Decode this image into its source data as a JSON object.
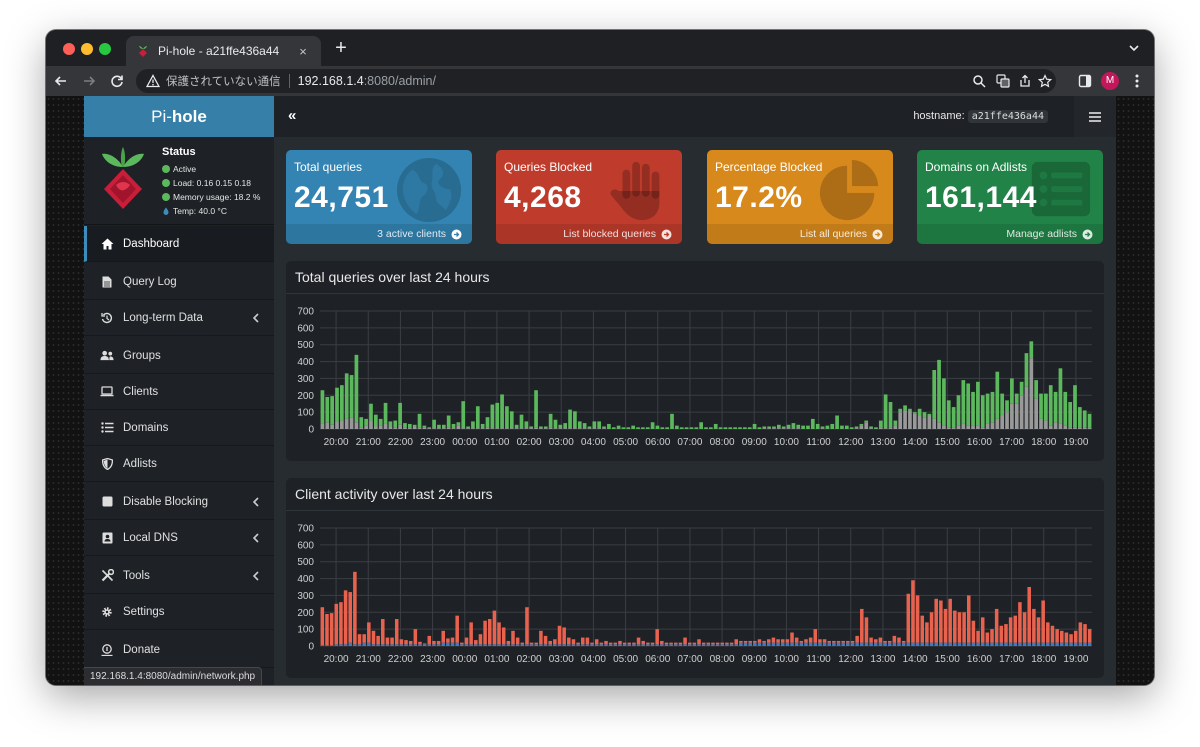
{
  "browser": {
    "tab_title": "Pi-hole - a21ffe436a44",
    "tab_close": "×",
    "new_tab": "+",
    "security_label": "保護されていない通信",
    "url_host": "192.168.1.4",
    "url_path": ":8080/admin/",
    "profile_initial": "M",
    "status_url": "192.168.1.4:8080/admin/network.php"
  },
  "sidebar": {
    "logo_prefix": "Pi-",
    "logo_bold": "hole",
    "status": {
      "title": "Status",
      "active": "Active",
      "load": "Load:  0.16  0.15  0.18",
      "memory": "Memory usage:  18.2 %",
      "temp": "Temp: 40.0 °C"
    },
    "items": [
      {
        "label": "Dashboard",
        "icon": "home-icon"
      },
      {
        "label": "Query Log",
        "icon": "file-icon"
      },
      {
        "label": "Long-term Data",
        "icon": "history-icon"
      },
      {
        "label": "Groups",
        "icon": "users-icon"
      },
      {
        "label": "Clients",
        "icon": "laptop-icon"
      },
      {
        "label": "Domains",
        "icon": "list-icon"
      },
      {
        "label": "Adlists",
        "icon": "shield-icon"
      },
      {
        "label": "Disable Blocking",
        "icon": "stop-icon"
      },
      {
        "label": "Local DNS",
        "icon": "address-book-icon"
      },
      {
        "label": "Tools",
        "icon": "tools-icon"
      },
      {
        "label": "Settings",
        "icon": "gear-icon"
      },
      {
        "label": "Donate",
        "icon": "donate-icon"
      }
    ]
  },
  "topbar": {
    "collapse": "«",
    "hostname_label": "hostname:",
    "hostname_value": "a21ffe436a44"
  },
  "stats": {
    "total": {
      "label": "Total queries",
      "value": "24,751",
      "footer": "3 active clients",
      "color": "#3384b2"
    },
    "blocked": {
      "label": "Queries Blocked",
      "value": "4,268",
      "footer": "List blocked queries",
      "color": "#bf3c2c"
    },
    "percent": {
      "label": "Percentage Blocked",
      "value": "17.2%",
      "footer": "List all queries",
      "color": "#d8891c"
    },
    "adlists": {
      "label": "Domains on Adlists",
      "value": "161,144",
      "footer": "Manage adlists",
      "color": "#218347"
    }
  },
  "chart_data": [
    {
      "type": "bar",
      "title": "Total queries over last 24 hours",
      "stacked": true,
      "ylim": [
        0,
        700
      ],
      "yticks": [
        0,
        100,
        200,
        300,
        400,
        500,
        600,
        700
      ],
      "xtick_labels": [
        "20:00",
        "21:00",
        "22:00",
        "23:00",
        "00:00",
        "01:00",
        "02:00",
        "03:00",
        "04:00",
        "05:00",
        "06:00",
        "07:00",
        "08:00",
        "09:00",
        "10:00",
        "11:00",
        "12:00",
        "13:00",
        "14:00",
        "15:00",
        "16:00",
        "17:00",
        "18:00",
        "19:00"
      ],
      "grid": true,
      "series": [
        {
          "color": "#999999",
          "values": [
            30,
            40,
            25,
            45,
            50,
            60,
            70,
            40,
            10,
            20,
            50,
            15,
            20,
            35,
            15,
            10,
            25,
            10,
            10,
            15,
            10,
            10,
            5,
            5,
            5,
            5,
            10,
            5,
            20,
            5,
            5,
            5,
            5,
            5,
            10,
            5,
            5,
            5,
            5,
            5,
            5,
            5,
            5,
            5,
            10,
            5,
            5,
            10,
            5,
            5,
            5,
            5,
            5,
            5,
            5,
            5,
            5,
            5,
            5,
            0,
            0,
            0,
            0,
            0,
            0,
            0,
            0,
            0,
            0,
            0,
            0,
            0,
            0,
            0,
            0,
            0,
            0,
            0,
            0,
            0,
            0,
            0,
            0,
            0,
            0,
            0,
            0,
            0,
            0,
            0,
            0,
            5,
            5,
            5,
            5,
            5,
            5,
            5,
            5,
            0,
            0,
            0,
            0,
            5,
            0,
            0,
            0,
            0,
            0,
            0,
            5,
            20,
            40,
            5,
            0,
            10,
            5,
            10,
            20,
            100,
            110,
            110,
            90,
            80,
            70,
            80,
            60,
            40,
            20,
            10,
            10,
            20,
            30,
            20,
            20,
            20,
            10,
            30,
            40,
            60,
            80,
            100,
            150,
            150,
            200,
            250,
            420,
            180,
            60,
            50,
            20,
            40,
            30,
            20,
            10,
            10,
            10,
            10,
            10
          ]
        },
        {
          "color": "#5cb85c",
          "values": [
            200,
            150,
            170,
            200,
            210,
            270,
            250,
            400,
            60,
            40,
            100,
            70,
            40,
            120,
            30,
            40,
            130,
            25,
            20,
            10,
            80,
            10,
            5,
            50,
            20,
            20,
            70,
            25,
            20,
            160,
            10,
            40,
            130,
            25,
            60,
            140,
            150,
            200,
            130,
            100,
            20,
            80,
            40,
            10,
            220,
            10,
            10,
            80,
            50,
            20,
            30,
            110,
            100,
            40,
            30,
            10,
            40,
            40,
            10,
            30,
            10,
            20,
            10,
            10,
            20,
            10,
            10,
            10,
            40,
            20,
            10,
            10,
            90,
            20,
            10,
            10,
            10,
            10,
            40,
            10,
            10,
            30,
            10,
            10,
            10,
            10,
            10,
            10,
            10,
            30,
            10,
            10,
            10,
            10,
            20,
            10,
            20,
            30,
            20,
            20,
            20,
            60,
            30,
            10,
            20,
            30,
            80,
            20,
            20,
            10,
            10,
            10,
            10,
            10,
            10,
            40,
            200,
            150,
            30,
            20,
            30,
            10,
            10,
            40,
            30,
            10,
            290,
            370,
            280,
            160,
            120,
            180,
            260,
            250,
            200,
            260,
            190,
            180,
            180,
            280,
            130,
            70,
            150,
            60,
            80,
            200,
            100,
            110,
            150,
            160,
            240,
            180,
            330,
            200,
            150,
            250,
            120,
            100,
            80,
            70,
            60,
            50,
            70,
            120,
            110,
            80,
            70,
            50,
            50,
            100,
            60
          ]
        }
      ]
    },
    {
      "type": "bar",
      "title": "Client activity over last 24 hours",
      "stacked": true,
      "ylim": [
        0,
        700
      ],
      "yticks": [
        0,
        100,
        200,
        300,
        400,
        500,
        600,
        700
      ],
      "xtick_labels": [
        "20:00",
        "21:00",
        "22:00",
        "23:00",
        "00:00",
        "01:00",
        "02:00",
        "03:00",
        "04:00",
        "05:00",
        "06:00",
        "07:00",
        "08:00",
        "09:00",
        "10:00",
        "11:00",
        "12:00",
        "13:00",
        "14:00",
        "15:00",
        "16:00",
        "17:00",
        "18:00",
        "19:00"
      ],
      "grid": true,
      "series": [
        {
          "color": "#3f7bc1",
          "values": [
            5,
            5,
            5,
            10,
            10,
            10,
            20,
            10,
            10,
            20,
            20,
            10,
            10,
            10,
            10,
            10,
            10,
            10,
            10,
            10,
            10,
            10,
            10,
            10,
            10,
            10,
            20,
            20,
            20,
            20,
            10,
            10,
            10,
            10,
            10,
            10,
            10,
            10,
            10,
            10,
            10,
            10,
            10,
            10,
            10,
            10,
            10,
            10,
            10,
            10,
            10,
            10,
            10,
            10,
            10,
            10,
            10,
            10,
            10,
            10,
            10,
            10,
            10,
            10,
            10,
            10,
            10,
            10,
            10,
            10,
            10,
            10,
            10,
            10,
            10,
            10,
            10,
            10,
            10,
            10,
            10,
            10,
            10,
            10,
            10,
            10,
            10,
            10,
            10,
            10,
            20,
            20,
            20,
            20,
            20,
            20,
            20,
            20,
            20,
            20,
            20,
            20,
            20,
            20,
            20,
            20,
            20,
            20,
            20,
            20,
            20,
            20,
            20,
            20,
            20,
            20,
            20,
            20,
            20,
            20,
            20,
            20,
            20,
            20,
            20,
            20,
            20,
            20,
            20,
            20,
            20,
            20,
            20,
            20,
            20,
            20,
            20,
            20,
            20,
            20,
            20,
            20,
            20,
            20,
            20,
            20,
            20,
            20,
            20,
            20,
            20,
            20,
            20,
            20,
            20,
            20,
            20,
            20,
            20,
            20,
            20,
            20,
            20,
            20,
            20,
            20
          ]
        },
        {
          "color": "#e8624e",
          "values": [
            225,
            185,
            190,
            240,
            250,
            320,
            300,
            430,
            60,
            50,
            120,
            80,
            50,
            150,
            40,
            40,
            150,
            30,
            25,
            20,
            90,
            15,
            5,
            50,
            20,
            20,
            70,
            25,
            30,
            160,
            10,
            40,
            130,
            25,
            60,
            140,
            150,
            200,
            130,
            100,
            20,
            80,
            40,
            10,
            220,
            10,
            10,
            80,
            50,
            20,
            30,
            110,
            100,
            40,
            30,
            10,
            40,
            40,
            10,
            30,
            10,
            20,
            10,
            10,
            20,
            10,
            10,
            10,
            40,
            20,
            10,
            10,
            90,
            20,
            10,
            10,
            10,
            10,
            40,
            10,
            10,
            30,
            10,
            10,
            10,
            10,
            10,
            10,
            10,
            30,
            10,
            10,
            10,
            10,
            20,
            10,
            20,
            30,
            20,
            20,
            20,
            60,
            30,
            10,
            20,
            30,
            80,
            20,
            20,
            10,
            10,
            10,
            10,
            10,
            10,
            40,
            200,
            150,
            30,
            20,
            30,
            10,
            10,
            40,
            30,
            10,
            290,
            370,
            280,
            160,
            120,
            180,
            260,
            250,
            200,
            260,
            190,
            180,
            180,
            280,
            130,
            70,
            150,
            60,
            80,
            200,
            100,
            110,
            150,
            160,
            240,
            180,
            330,
            200,
            150,
            250,
            120,
            100,
            80,
            70,
            60,
            50,
            70,
            120,
            110,
            80,
            70,
            50,
            50,
            100,
            60
          ]
        }
      ]
    }
  ]
}
